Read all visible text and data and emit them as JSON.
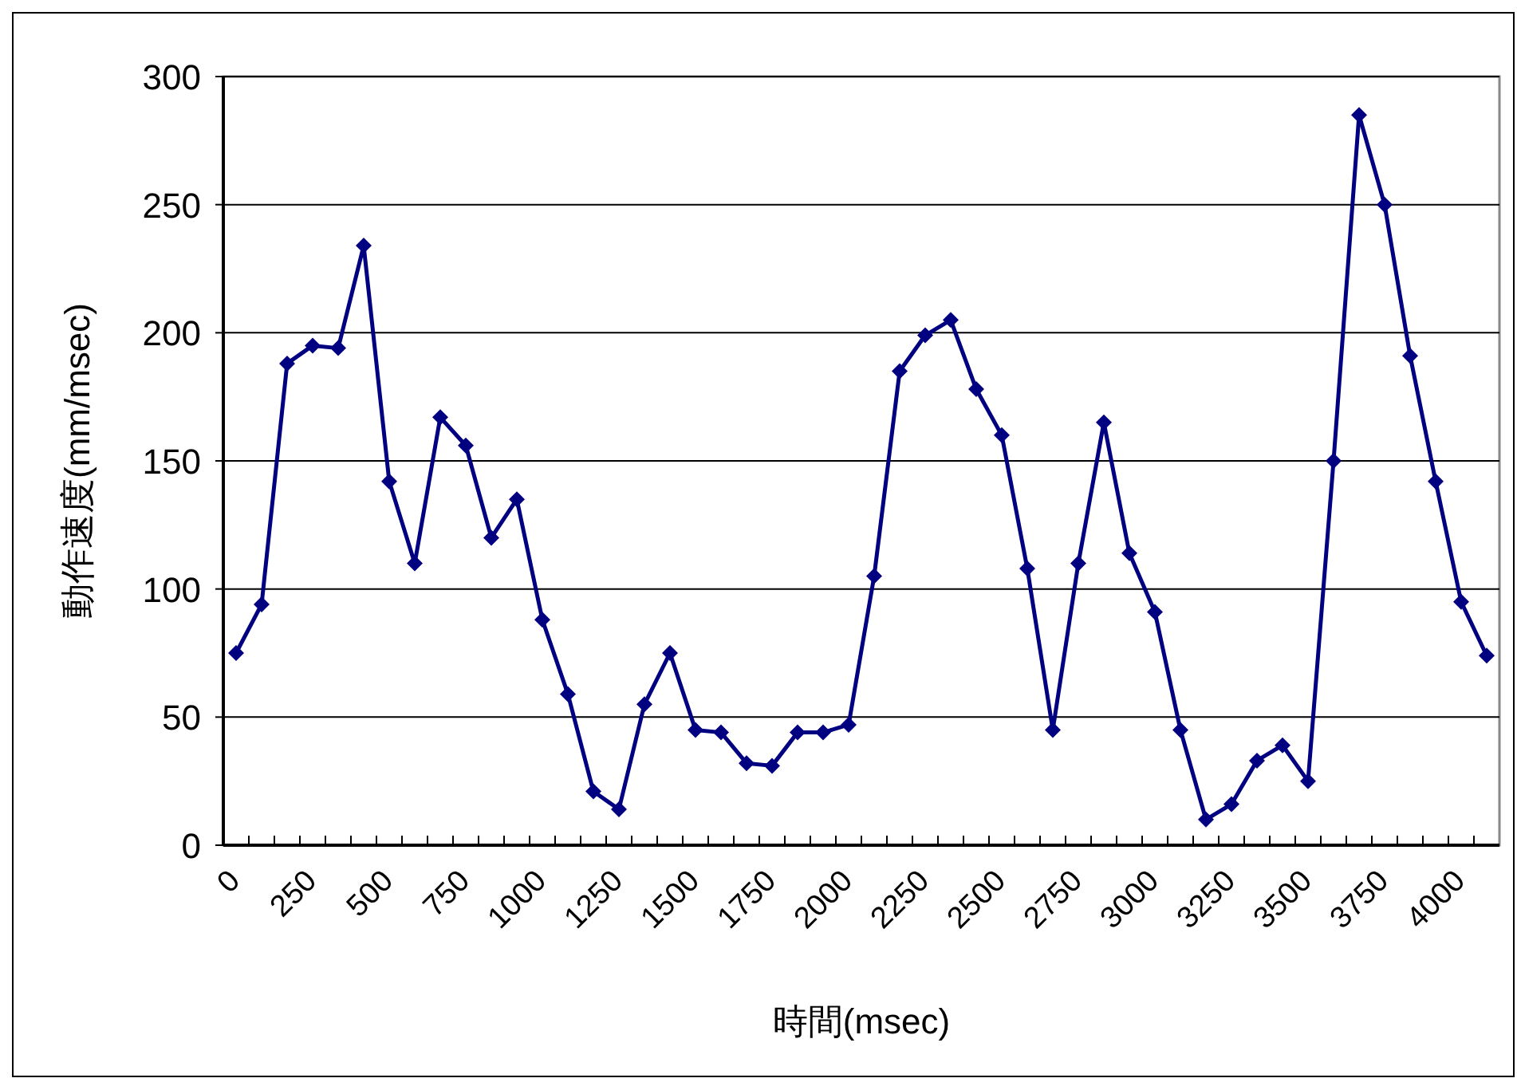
{
  "chart_data": {
    "type": "line",
    "xlabel": "時間(msec)",
    "ylabel": "動作速度(mm/msec)",
    "categories": [
      "0",
      null,
      null,
      "250",
      null,
      null,
      "500",
      null,
      null,
      "750",
      null,
      null,
      "1000",
      null,
      null,
      "1250",
      null,
      null,
      "1500",
      null,
      null,
      "1750",
      null,
      null,
      "2000",
      null,
      null,
      "2250",
      null,
      null,
      "2500",
      null,
      null,
      "2750",
      null,
      null,
      "3000",
      null,
      null,
      "3250",
      null,
      null,
      "3500",
      null,
      null,
      "3750",
      null,
      null,
      "4000",
      null
    ],
    "series": [
      {
        "color": "#000080",
        "values": [
          75,
          94,
          188,
          195,
          194,
          234,
          142,
          110,
          167,
          156,
          120,
          135,
          88,
          59,
          21,
          14,
          55,
          75,
          45,
          44,
          32,
          31,
          44,
          44,
          47,
          105,
          185,
          199,
          205,
          178,
          160,
          108,
          45,
          110,
          165,
          114,
          91,
          45,
          10,
          16,
          33,
          39,
          25,
          150,
          285,
          250,
          191,
          142,
          95,
          74
        ]
      }
    ],
    "ylim": [
      0,
      300
    ],
    "yticks": [
      0,
      50,
      100,
      150,
      200,
      250,
      300
    ],
    "grid": "y",
    "marker": "diamond",
    "line_style": "solid"
  }
}
